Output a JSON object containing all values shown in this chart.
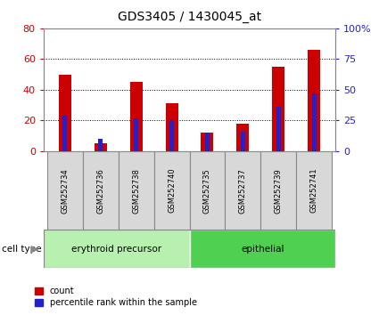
{
  "title": "GDS3405 / 1430045_at",
  "samples": [
    "GSM252734",
    "GSM252736",
    "GSM252738",
    "GSM252740",
    "GSM252735",
    "GSM252737",
    "GSM252739",
    "GSM252741"
  ],
  "count_values": [
    50,
    5,
    45,
    31,
    12,
    18,
    55,
    66
  ],
  "percentile_values": [
    30,
    10,
    27,
    25,
    15,
    16,
    36,
    47
  ],
  "cell_types": [
    {
      "label": "erythroid precursor",
      "start": 0,
      "end": 4
    },
    {
      "label": "epithelial",
      "start": 4,
      "end": 8
    }
  ],
  "ylim_left": [
    0,
    80
  ],
  "ylim_right": [
    0,
    100
  ],
  "yticks_left": [
    0,
    20,
    40,
    60,
    80
  ],
  "yticks_right": [
    0,
    25,
    50,
    75,
    100
  ],
  "ytick_labels_right": [
    "0",
    "25",
    "50",
    "75",
    "100%"
  ],
  "bar_color_red": "#cc0000",
  "bar_color_blue": "#2222cc",
  "red_bar_width": 0.35,
  "blue_bar_width": 0.12,
  "cell_type_label": "cell type",
  "legend_count": "count",
  "legend_percentile": "percentile rank within the sample",
  "background_color": "#ffffff",
  "plot_bg": "#ffffff",
  "axis_color_left": "#cc0000",
  "axis_color_right": "#2222cc",
  "title_fontsize": 10,
  "tick_fontsize": 8,
  "cell_type_color_1": "#b8f0b0",
  "cell_type_color_2": "#50d050",
  "sample_box_color": "#d8d8d8",
  "sample_box_border": "#888888"
}
